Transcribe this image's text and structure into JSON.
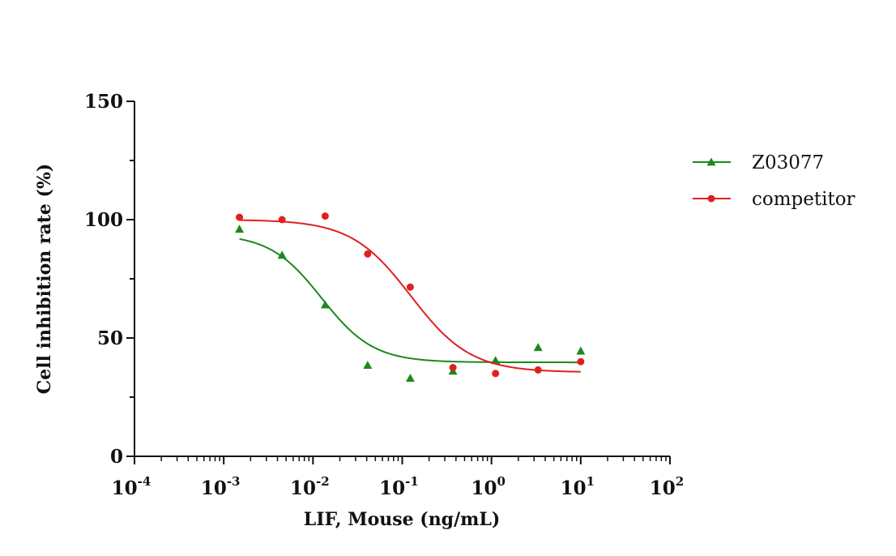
{
  "chart_data": {
    "type": "scatter",
    "xlabel": "LIF, Mouse (ng/mL)",
    "ylabel": "Cell inhibition rate (%)",
    "xscale": "log",
    "xlim": [
      0.0001,
      100
    ],
    "ylim": [
      0,
      150
    ],
    "x_ticks": [
      {
        "value": 0.0001,
        "base": "10",
        "exp": "-4"
      },
      {
        "value": 0.001,
        "base": "10",
        "exp": "-3"
      },
      {
        "value": 0.01,
        "base": "10",
        "exp": "-2"
      },
      {
        "value": 0.1,
        "base": "10",
        "exp": "-1"
      },
      {
        "value": 1,
        "base": "10",
        "exp": "0"
      },
      {
        "value": 10,
        "base": "10",
        "exp": "1"
      },
      {
        "value": 100,
        "base": "10",
        "exp": "2"
      }
    ],
    "y_ticks": [
      {
        "value": 0,
        "label": "0"
      },
      {
        "value": 50,
        "label": "50"
      },
      {
        "value": 100,
        "label": "100"
      },
      {
        "value": 150,
        "label": "150"
      }
    ],
    "y_minor_ticks": [
      25,
      75,
      125
    ],
    "grid": false,
    "legend_position": "right",
    "series": [
      {
        "name": "Z03077",
        "color": "#1a8a1a",
        "marker": "triangle",
        "points": [
          {
            "x": 0.0015,
            "y": 96
          },
          {
            "x": 0.0045,
            "y": 85
          },
          {
            "x": 0.0137,
            "y": 64
          },
          {
            "x": 0.041,
            "y": 38.5
          },
          {
            "x": 0.123,
            "y": 33
          },
          {
            "x": 0.37,
            "y": 36
          },
          {
            "x": 1.11,
            "y": 40.5
          },
          {
            "x": 3.33,
            "y": 46
          },
          {
            "x": 10,
            "y": 44.5
          }
        ],
        "fit": {
          "top": 94,
          "bottom": 39.7,
          "ic50": 0.0125,
          "hill": 1.5
        }
      },
      {
        "name": "competitor",
        "color": "#e02020",
        "marker": "circle",
        "points": [
          {
            "x": 0.0015,
            "y": 101
          },
          {
            "x": 0.0045,
            "y": 100
          },
          {
            "x": 0.0137,
            "y": 101.5
          },
          {
            "x": 0.041,
            "y": 85.5
          },
          {
            "x": 0.123,
            "y": 71.5
          },
          {
            "x": 0.37,
            "y": 37.5
          },
          {
            "x": 1.11,
            "y": 35
          },
          {
            "x": 3.33,
            "y": 36.5
          },
          {
            "x": 10,
            "y": 40
          }
        ],
        "fit": {
          "top": 100,
          "bottom": 35.5,
          "ic50": 0.125,
          "hill": 1.3
        }
      }
    ]
  }
}
